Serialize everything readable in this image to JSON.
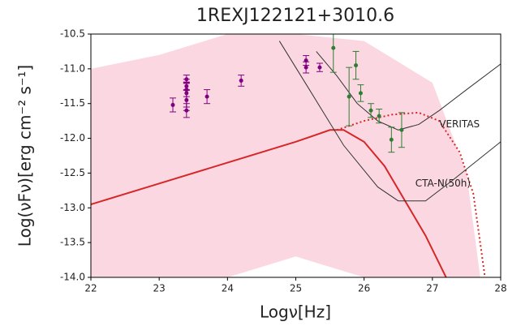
{
  "chart_data": {
    "type": "sed",
    "title": "1REXJ122121+3010.6",
    "x_label": "Logν[Hz]",
    "y_label": "Log(νFν)[erg cm⁻² s⁻¹]",
    "xlim": [
      22,
      28
    ],
    "ylim": [
      -14.0,
      -10.5
    ],
    "xticks": [
      22,
      23,
      24,
      25,
      26,
      27,
      28
    ],
    "yticks": [
      -10.5,
      {
        "value": -11,
        "label": "-11.0"
      },
      -11.5,
      {
        "value": -12,
        "label": "-12.0"
      },
      -12.5,
      {
        "value": -13,
        "label": "-13.0"
      },
      -13.5,
      {
        "value": -14,
        "label": "-14.0"
      }
    ],
    "band": {
      "color": "#f8b8c8",
      "x": [
        22,
        23,
        24,
        25,
        26,
        27,
        27.5,
        27.7
      ],
      "upper": [
        -11.0,
        -10.8,
        -10.5,
        -10.5,
        -10.6,
        -11.2,
        -12.5,
        -14.0
      ],
      "lower": [
        -14.0,
        -14.0,
        -14.0,
        -13.7,
        -14.0,
        -14.0,
        -14.0,
        -14.0
      ]
    },
    "lines": [
      {
        "color": "#d62728",
        "style": "solid",
        "width": 2,
        "x": [
          22,
          23,
          24,
          25,
          25.5,
          25.7,
          26,
          26.3,
          26.6,
          26.9,
          27.1,
          27.2
        ],
        "values": [
          -12.95,
          -12.65,
          -12.35,
          -12.05,
          -11.88,
          -11.88,
          -12.05,
          -12.4,
          -12.9,
          -13.4,
          -13.8,
          -14.0
        ]
      },
      {
        "color": "#d62728",
        "style": "dotted",
        "width": 2,
        "x": [
          25.6,
          26.0,
          26.4,
          26.8,
          27.1,
          27.4,
          27.6,
          27.77
        ],
        "values": [
          -11.88,
          -11.75,
          -11.66,
          -11.63,
          -11.75,
          -12.2,
          -12.8,
          -14.0
        ]
      },
      {
        "color": "#333333",
        "style": "solid",
        "width": 1,
        "label": "VERITAS",
        "x": [
          25.3,
          25.6,
          25.9,
          26.2,
          26.5,
          26.8,
          27.1,
          27.5,
          28.0
        ],
        "values": [
          -10.75,
          -11.1,
          -11.5,
          -11.75,
          -11.88,
          -11.8,
          -11.6,
          -11.3,
          -10.93
        ]
      },
      {
        "color": "#333333",
        "style": "solid",
        "width": 1,
        "label": "CTA-N(50h)",
        "x": [
          24.76,
          25.2,
          25.7,
          26.2,
          26.5,
          26.9,
          27.3,
          28.0
        ],
        "values": [
          -10.6,
          -11.3,
          -12.1,
          -12.7,
          -12.9,
          -12.9,
          -12.6,
          -12.05
        ]
      }
    ],
    "points": [
      {
        "color": "#800080",
        "x": [
          23.2,
          23.4,
          23.4,
          23.4,
          23.4,
          23.4,
          23.4,
          23.7,
          24.2,
          25.15,
          25.15,
          25.35
        ],
        "values": [
          -11.52,
          -11.15,
          -11.25,
          -11.3,
          -11.35,
          -11.45,
          -11.6,
          -11.4,
          -11.17,
          -10.88,
          -10.98,
          -10.98
        ],
        "errors": [
          0.1,
          0.06,
          0.06,
          0.1,
          0.2,
          0.15,
          0.1,
          0.1,
          0.08,
          0.07,
          0.08,
          0.06
        ]
      },
      {
        "color": "#2e7d32",
        "x": [
          25.55,
          25.78,
          25.88,
          25.95,
          26.1,
          26.22,
          26.4,
          26.55
        ],
        "values": [
          -10.7,
          -11.4,
          -10.95,
          -11.35,
          -11.6,
          -11.68,
          -12.02,
          -11.88
        ],
        "errors": [
          0.35,
          0.42,
          0.2,
          0.12,
          0.1,
          0.1,
          0.18,
          0.25
        ]
      }
    ]
  }
}
